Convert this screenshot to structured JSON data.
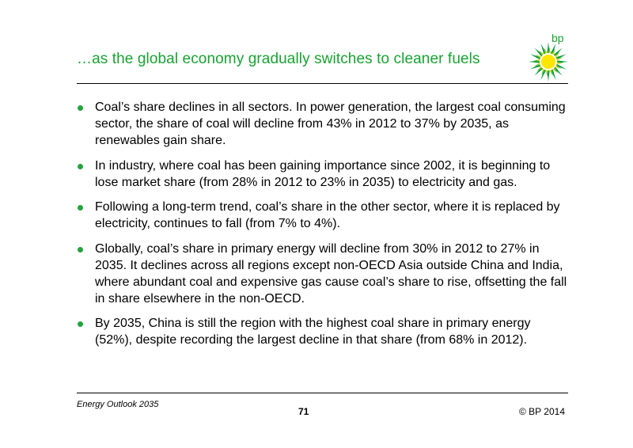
{
  "header": {
    "title": "…as the global economy gradually switches to cleaner fuels",
    "logo_text": "bp"
  },
  "bullets": [
    "Coal’s share declines in all sectors. In power generation, the largest coal consuming sector, the share of coal will decline from 43% in 2012 to 37% by 2035, as renewables gain share.",
    "In industry, where coal has been gaining importance since 2002, it is beginning to lose market share (from 28% in 2012 to 23% in 2035) to electricity and gas.",
    "Following a long-term trend, coal’s share in the other sector, where it is replaced by electricity, continues to fall (from 7% to 4%).",
    "Globally, coal’s share in primary energy will decline from 30% in 2012 to 27% in 2035. It declines across all regions except non-OECD Asia outside China and India, where abundant coal and expensive gas cause coal’s share to rise, offsetting the fall in share elsewhere in the non-OECD.",
    "By 2035, China is still the region with the highest coal share in primary energy (52%), despite recording the largest decline in that share (from 68% in 2012)."
  ],
  "footer": {
    "publication": "Energy Outlook 2035",
    "page_number": "71",
    "copyright": "© BP 2014"
  },
  "colors": {
    "accent_green": "#18a332",
    "logo_yellow": "#ffe600",
    "logo_green": "#009b3a"
  }
}
